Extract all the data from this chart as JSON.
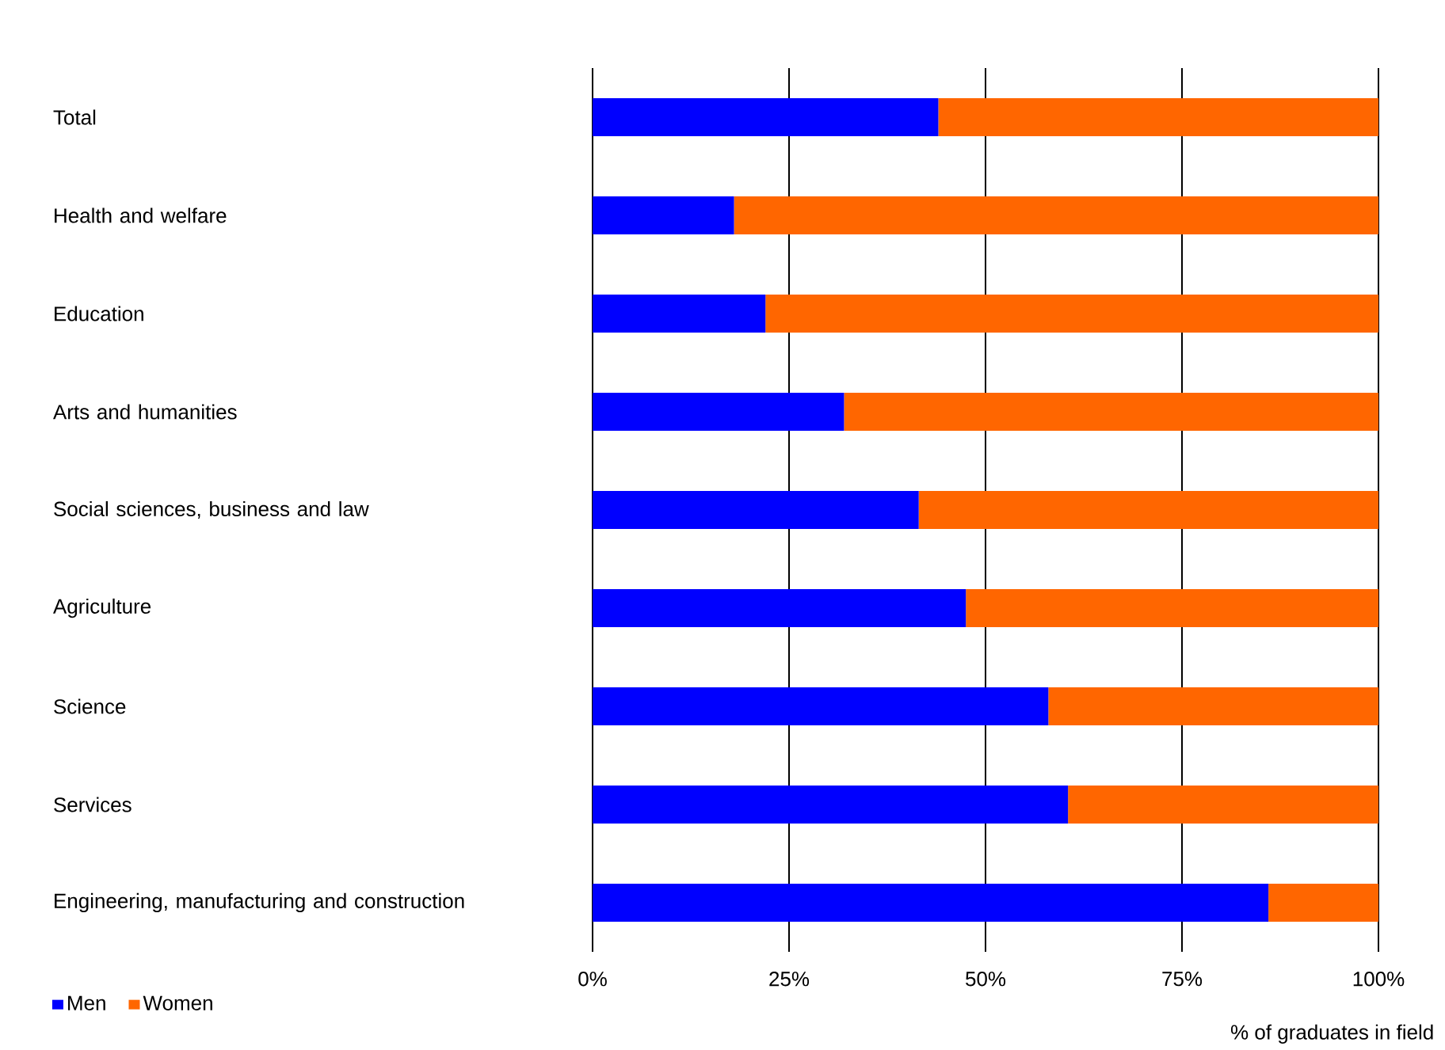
{
  "chart_data": {
    "type": "bar",
    "orientation": "horizontal",
    "stacked": true,
    "categories": [
      "Total",
      "Health and welfare",
      "Education",
      "Arts and humanities",
      "Social sciences, business and law",
      "Agriculture",
      "Science",
      "Services",
      "Engineering, manufacturing and construction"
    ],
    "series": [
      {
        "name": "Men",
        "color": "#0000ff",
        "values": [
          44,
          18,
          22,
          32,
          41.5,
          47.5,
          58,
          60.5,
          86
        ]
      },
      {
        "name": "Women",
        "color": "#ff6600",
        "values": [
          56,
          82,
          78,
          68,
          58.5,
          52.5,
          42,
          39.5,
          14
        ]
      }
    ],
    "xlim": [
      0,
      100
    ],
    "xticks": [
      {
        "value": 0,
        "label": "0%"
      },
      {
        "value": 25,
        "label": "25%"
      },
      {
        "value": 50,
        "label": "50%"
      },
      {
        "value": 75,
        "label": "75%"
      },
      {
        "value": 100,
        "label": "100%"
      }
    ],
    "xlabel": "% of graduates in field",
    "grid": "x",
    "legend": "bottom left"
  }
}
